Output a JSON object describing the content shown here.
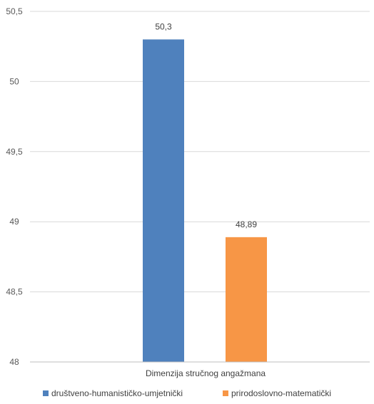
{
  "chart_data": {
    "type": "bar",
    "categories": [
      "Dimenzija stručnog angažmana"
    ],
    "series": [
      {
        "name": "društveno-humanističko-umjetnički",
        "values": [
          50.3
        ],
        "value_label": "50,3",
        "color": "#4f81bd"
      },
      {
        "name": "prirodoslovno-matematički",
        "values": [
          48.89
        ],
        "value_label": "48,89",
        "color": "#f79646"
      }
    ],
    "ylim": [
      48,
      50.5
    ],
    "yticks": [
      48,
      48.5,
      49,
      49.5,
      50,
      50.5
    ],
    "ytick_labels": [
      "48",
      "48,5",
      "49",
      "49,5",
      "50",
      "50,5"
    ],
    "xlabel": "",
    "ylabel": "",
    "title": "",
    "grid": true,
    "legend": "bottom"
  }
}
